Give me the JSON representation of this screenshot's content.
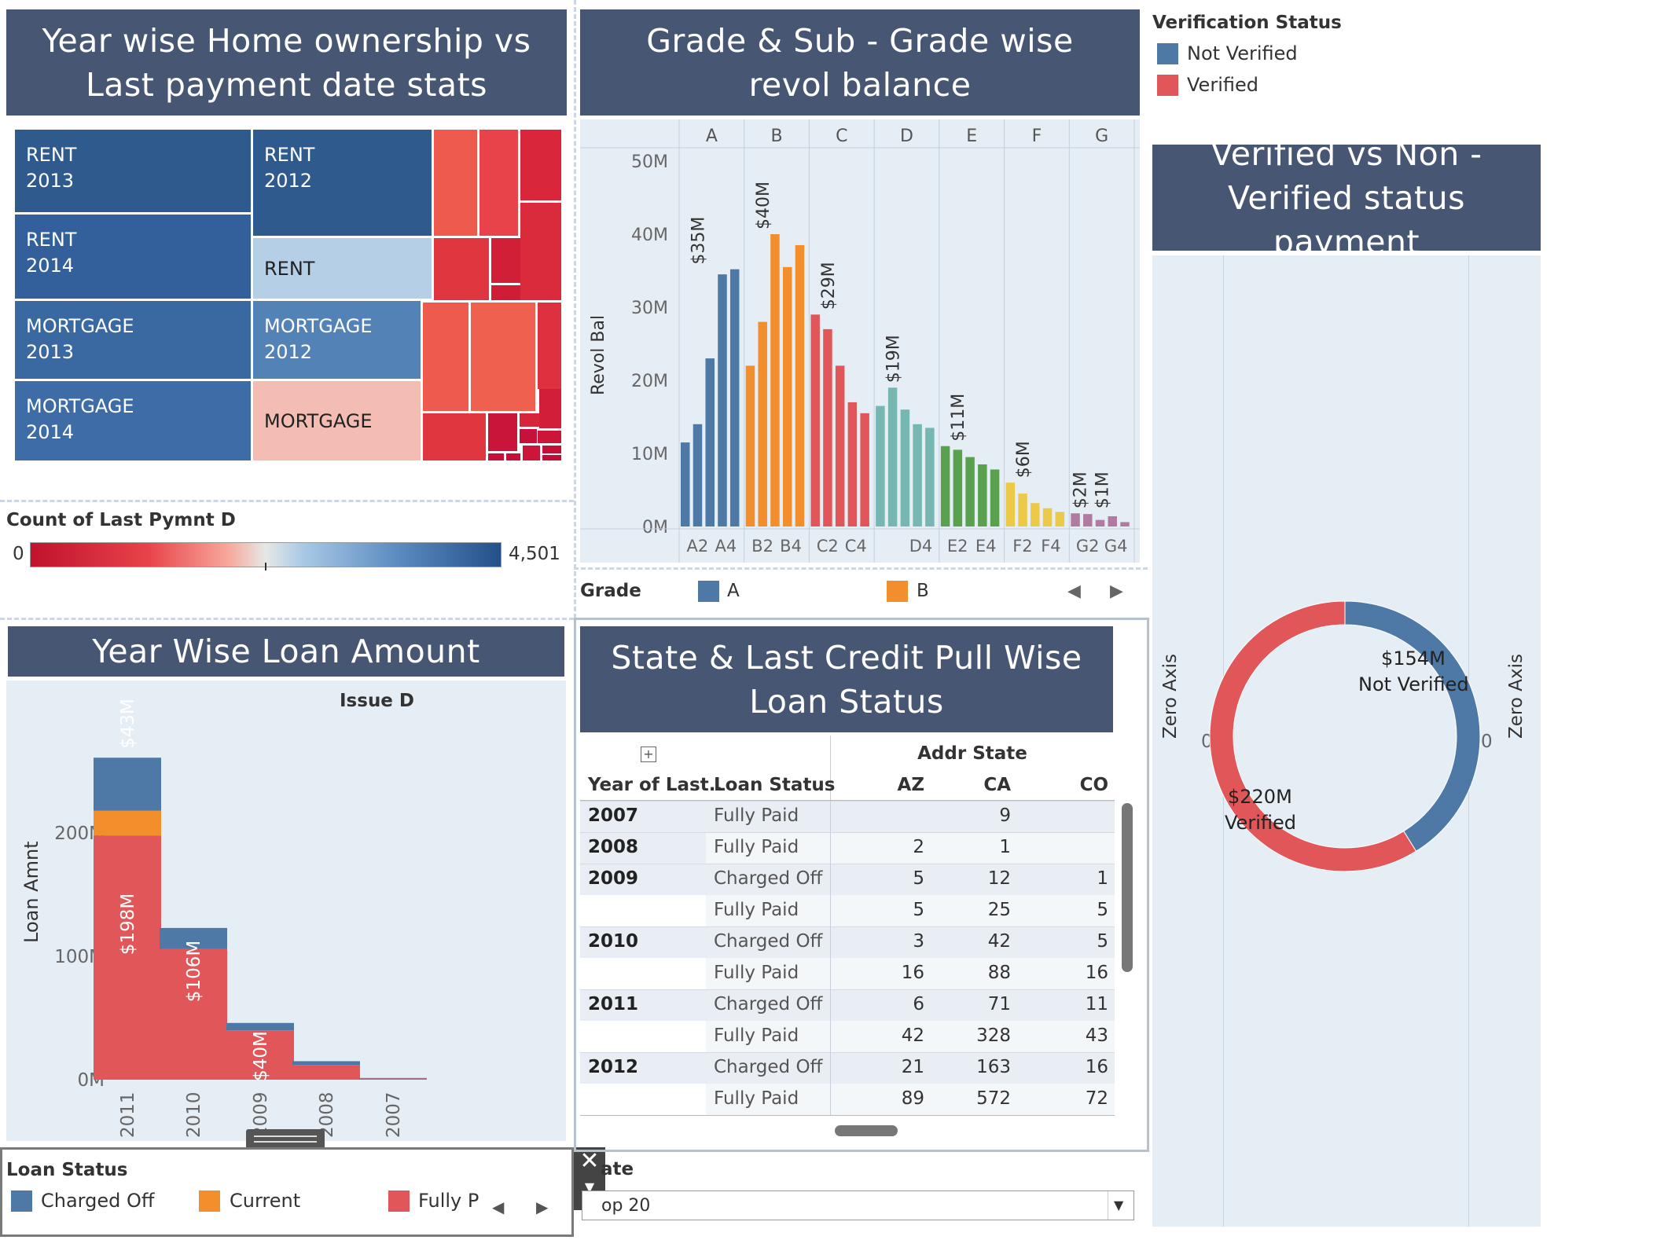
{
  "treemap": {
    "title": "Year wise Home ownership vs Last payment date stats",
    "cells": [
      {
        "label": "RENT\n2013",
        "color": "#2f5a8e"
      },
      {
        "label": "RENT\n2012",
        "color": "#2f5a8e"
      },
      {
        "label": "RENT\n2014",
        "color": "#33609a"
      },
      {
        "label": "RENT",
        "color": "#b5d0e6",
        "dark": true
      },
      {
        "label": "MORTGAGE\n2013",
        "color": "#3a68a0"
      },
      {
        "label": "MORTGAGE\n2012",
        "color": "#5382b7"
      },
      {
        "label": "MORTGAGE\n2014",
        "color": "#3e6ca6"
      },
      {
        "label": "MORTGAGE",
        "color": "#f4bdb3",
        "dark": true
      }
    ],
    "legend": {
      "title": "Count of Last Pymnt D",
      "min": "0",
      "max": "4,501"
    }
  },
  "grade_chart": {
    "title": "Grade & Sub - Grade wise revol balance",
    "grades": [
      "A",
      "B",
      "C",
      "D",
      "E",
      "F",
      "G"
    ],
    "y_ticks": [
      "50M",
      "40M",
      "30M",
      "20M",
      "10M",
      "0M"
    ],
    "y_label": "Revol Bal",
    "bottom_labels": [
      "A2",
      "A4",
      "B2",
      "B4",
      "C2",
      "C4",
      "D4",
      "E2",
      "E4",
      "F2",
      "F4",
      "G2",
      "G4"
    ],
    "value_labels": [
      "$35M",
      "$40M",
      "$29M",
      "$19M",
      "$11M",
      "$6M",
      "$2M",
      "$1M"
    ],
    "legend": {
      "title": "Grade",
      "items": [
        "A",
        "B"
      ]
    }
  },
  "chart_data": [
    {
      "type": "bar",
      "title": "Grade & Sub - Grade wise revol balance",
      "ylabel": "Revol Bal",
      "ylim": [
        0,
        50000000
      ],
      "series": [
        {
          "name": "A",
          "color": "#4e79a7",
          "values": [
            11.5,
            14,
            23,
            34.5,
            35.2
          ]
        },
        {
          "name": "B",
          "color": "#f28e2b",
          "values": [
            22,
            28,
            40,
            35.5,
            38.5
          ]
        },
        {
          "name": "C",
          "color": "#e15759",
          "values": [
            29,
            27,
            22,
            17,
            15.5
          ]
        },
        {
          "name": "D",
          "color": "#76b7b2",
          "values": [
            16.5,
            19,
            16,
            14,
            13.5
          ]
        },
        {
          "name": "E",
          "color": "#59a14f",
          "values": [
            11,
            10.5,
            9.5,
            8.5,
            7.8
          ]
        },
        {
          "name": "F",
          "color": "#edc948",
          "values": [
            6,
            4.5,
            3.2,
            2.5,
            2
          ]
        },
        {
          "name": "G",
          "color": "#b07aa1",
          "values": [
            1.8,
            1.7,
            0.9,
            1.4,
            0.6
          ]
        }
      ]
    },
    {
      "type": "bar",
      "title": "Year Wise Loan Amount",
      "xlabel": "Issue D",
      "ylabel": "Loan Amnt",
      "categories": [
        "2011",
        "2010",
        "2009",
        "2008",
        "2007"
      ],
      "series": [
        {
          "name": "Fully Paid",
          "values": [
            198,
            106,
            40,
            12,
            1
          ]
        },
        {
          "name": "Current",
          "values": [
            20,
            0,
            0,
            0,
            0
          ]
        },
        {
          "name": "Charged Off",
          "values": [
            43,
            17,
            6,
            3,
            0.4
          ]
        }
      ]
    },
    {
      "type": "pie",
      "title": "Verified vs Non - Verified status payment",
      "series": [
        {
          "name": "Not Verified",
          "values": [
            154
          ]
        },
        {
          "name": "Verified",
          "values": [
            220
          ]
        }
      ]
    }
  ],
  "loan_chart": {
    "title": "Year Wise Loan Amount",
    "x_header": "Issue D",
    "y_label": "Loan Amnt",
    "y_ticks": [
      "200M",
      "100M",
      "0M"
    ],
    "bar_labels": [
      "$43M",
      "$198M",
      "$106M",
      "$40M"
    ],
    "legend": {
      "title": "Loan Status",
      "items": [
        "Charged Off",
        "Current",
        "Fully P"
      ]
    }
  },
  "verify": {
    "legend_title": "Verification Status",
    "legend_items": [
      "Not Verified",
      "Verified"
    ],
    "title": "Verified vs Non - Verified status payment",
    "axis_label": "Zero Axis",
    "zero": "0",
    "nv_value": "$154M",
    "nv_label": "Not Verified",
    "v_value": "$220M",
    "v_label": "Verified"
  },
  "table": {
    "title": "State & Last Credit Pull Wise Loan Status",
    "col_header": "Addr State",
    "row_headers": [
      "Year of Last..",
      "Loan Status"
    ],
    "states": [
      "AZ",
      "CA",
      "CO"
    ],
    "rows": [
      {
        "year": "2007",
        "status": "Fully Paid",
        "vals": [
          "",
          "9",
          ""
        ]
      },
      {
        "year": "2008",
        "status": "Fully Paid",
        "vals": [
          "2",
          "1",
          ""
        ]
      },
      {
        "year": "2009",
        "status": "Charged Off",
        "vals": [
          "5",
          "12",
          "1"
        ]
      },
      {
        "year": "",
        "status": "Fully Paid",
        "vals": [
          "5",
          "25",
          "5"
        ]
      },
      {
        "year": "2010",
        "status": "Charged Off",
        "vals": [
          "3",
          "42",
          "5"
        ]
      },
      {
        "year": "",
        "status": "Fully Paid",
        "vals": [
          "16",
          "88",
          "16"
        ]
      },
      {
        "year": "2011",
        "status": "Charged Off",
        "vals": [
          "6",
          "71",
          "11"
        ]
      },
      {
        "year": "",
        "status": "Fully Paid",
        "vals": [
          "42",
          "328",
          "43"
        ]
      },
      {
        "year": "2012",
        "status": "Charged Off",
        "vals": [
          "21",
          "163",
          "16"
        ]
      },
      {
        "year": "",
        "status": "Fully Paid",
        "vals": [
          "89",
          "572",
          "72"
        ]
      }
    ]
  },
  "filter": {
    "label": "ate",
    "value": "op 20"
  }
}
